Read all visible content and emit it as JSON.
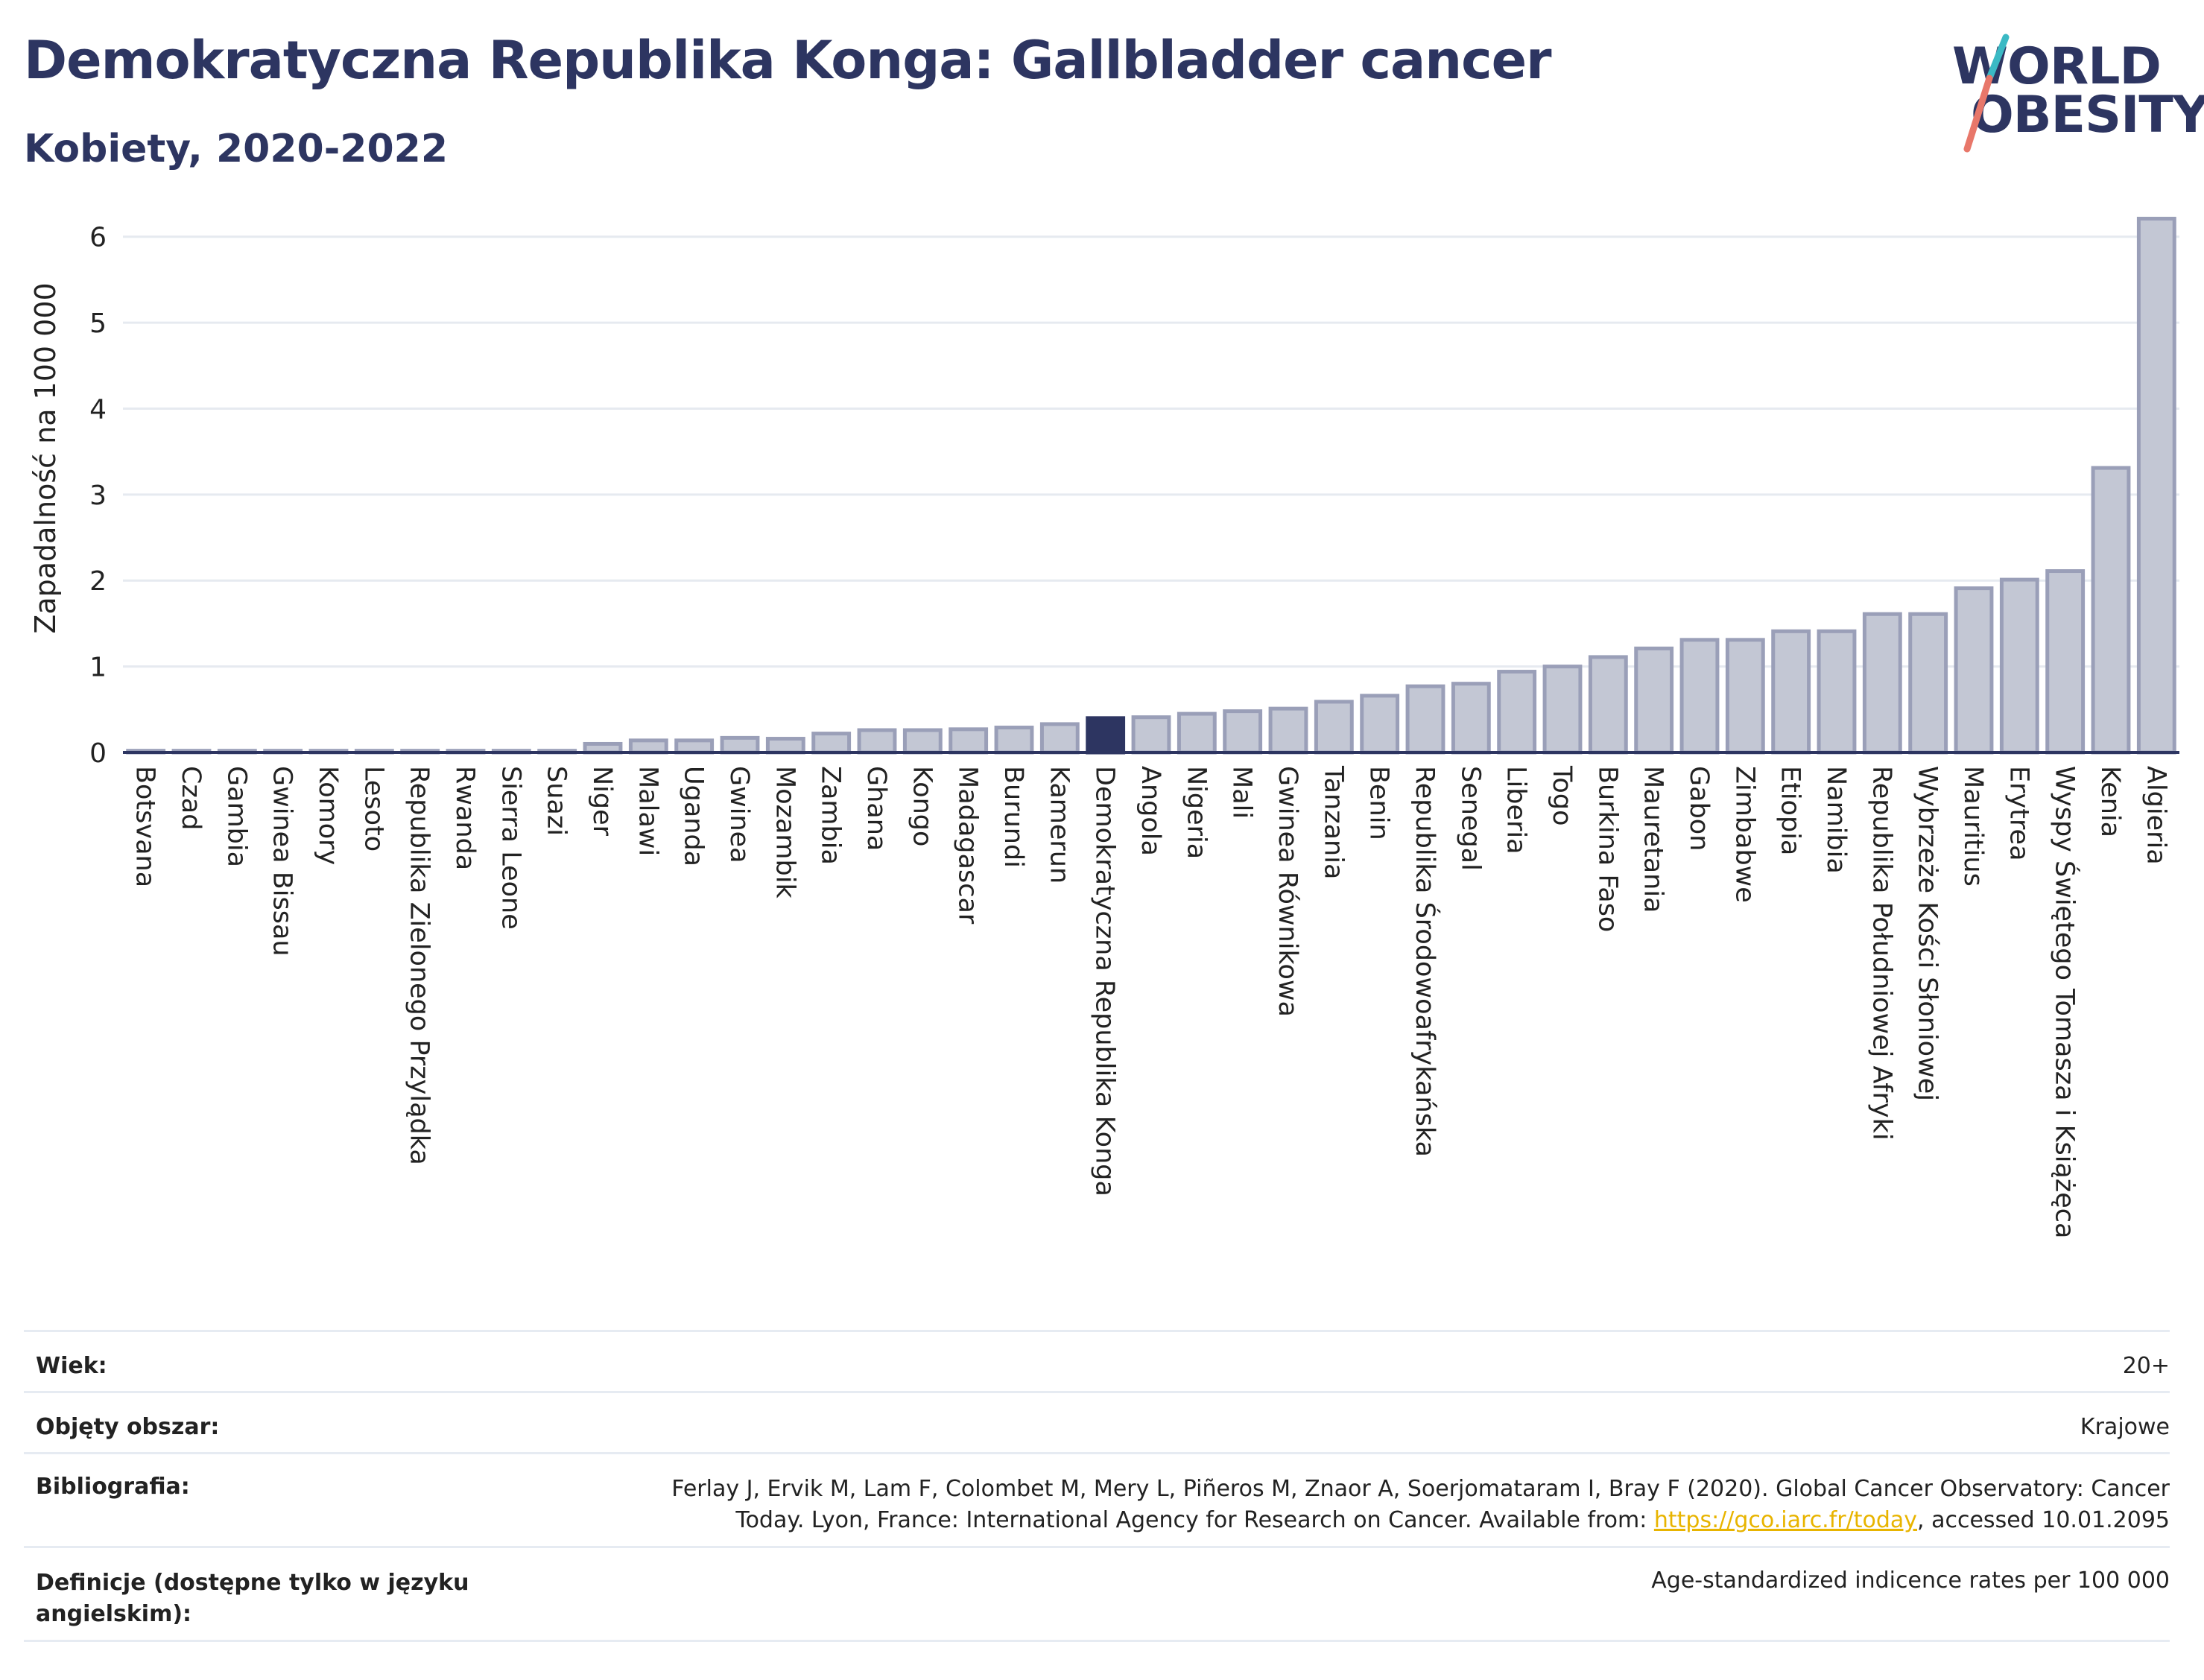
{
  "header": {
    "title": "Demokratyczna Republika Konga: Gallbladder cancer",
    "subtitle": "Kobiety, 2020-2022"
  },
  "logo": {
    "line1": "WORLD",
    "line2": "OBESITY",
    "colors": {
      "text": "#2d3561",
      "slash_top": "#3bb9c4",
      "slash_bottom": "#e8776a"
    }
  },
  "chart_data": {
    "type": "bar",
    "ylabel": "Zapadalność na 100 000",
    "ylim": [
      0,
      6.5
    ],
    "yticks": [
      0,
      1,
      2,
      3,
      4,
      5,
      6
    ],
    "grid": true,
    "highlight": "Demokratyczna Republika Konga",
    "colors": {
      "bar": "#c3c7d4",
      "bar_border": "#9a9fb8",
      "highlight": "#2d3561",
      "grid": "#e6eaf0",
      "axis": "#2d3561"
    },
    "categories": [
      "Botsvana",
      "Czad",
      "Gambia",
      "Gwinea Bissau",
      "Komory",
      "Lesoto",
      "Republika Zielonego Przylądka",
      "Rwanda",
      "Sierra Leone",
      "Suazi",
      "Niger",
      "Malawi",
      "Uganda",
      "Gwinea",
      "Mozambik",
      "Zambia",
      "Ghana",
      "Kongo",
      "Madagascar",
      "Burundi",
      "Kamerun",
      "Demokratyczna Republika Konga",
      "Angola",
      "Nigeria",
      "Mali",
      "Gwinea Równikowa",
      "Tanzania",
      "Benin",
      "Republika Środowoafrykańska",
      "Senegal",
      "Liberia",
      "Togo",
      "Burkina Faso",
      "Mauretania",
      "Gabon",
      "Zimbabwe",
      "Etiopia",
      "Namibia",
      "Republika Południowej Afryki",
      "Wybrzeże Kości Słoniowej",
      "Mauritius",
      "Erytrea",
      "Wyspy Świętego Tomasza i Książęca",
      "Kenia",
      "Algieria"
    ],
    "values": [
      0.02,
      0.02,
      0.02,
      0.02,
      0.02,
      0.02,
      0.02,
      0.02,
      0.02,
      0.02,
      0.1,
      0.14,
      0.14,
      0.17,
      0.16,
      0.22,
      0.26,
      0.26,
      0.27,
      0.29,
      0.33,
      0.4,
      0.41,
      0.45,
      0.48,
      0.51,
      0.59,
      0.66,
      0.77,
      0.8,
      0.94,
      1.0,
      1.11,
      1.21,
      1.31,
      1.31,
      1.41,
      1.41,
      1.61,
      1.61,
      1.91,
      2.01,
      2.11,
      3.31,
      6.21
    ]
  },
  "meta": {
    "rows": [
      {
        "key": "Wiek:",
        "value": "20+"
      },
      {
        "key": "Objęty obszar:",
        "value": "Krajowe"
      },
      {
        "key": "Bibliografia:",
        "value_line1": "Ferlay J, Ervik M, Lam F, Colombet M, Mery L, Piñeros M, Znaor A, Soerjomataram I, Bray F (2020). Global Cancer Observatory: Cancer",
        "value_line2_pre": "Today. Lyon, France: International Agency for Research on Cancer. Available from: ",
        "link": "https://gco.iarc.fr/today",
        "value_line2_post": ", accessed 10.01.2095"
      },
      {
        "key_line1": "Definicje (dostępne tylko w języku",
        "key_line2": "angielskim):",
        "value": "Age-standardized indicence rates per 100 000"
      }
    ]
  }
}
